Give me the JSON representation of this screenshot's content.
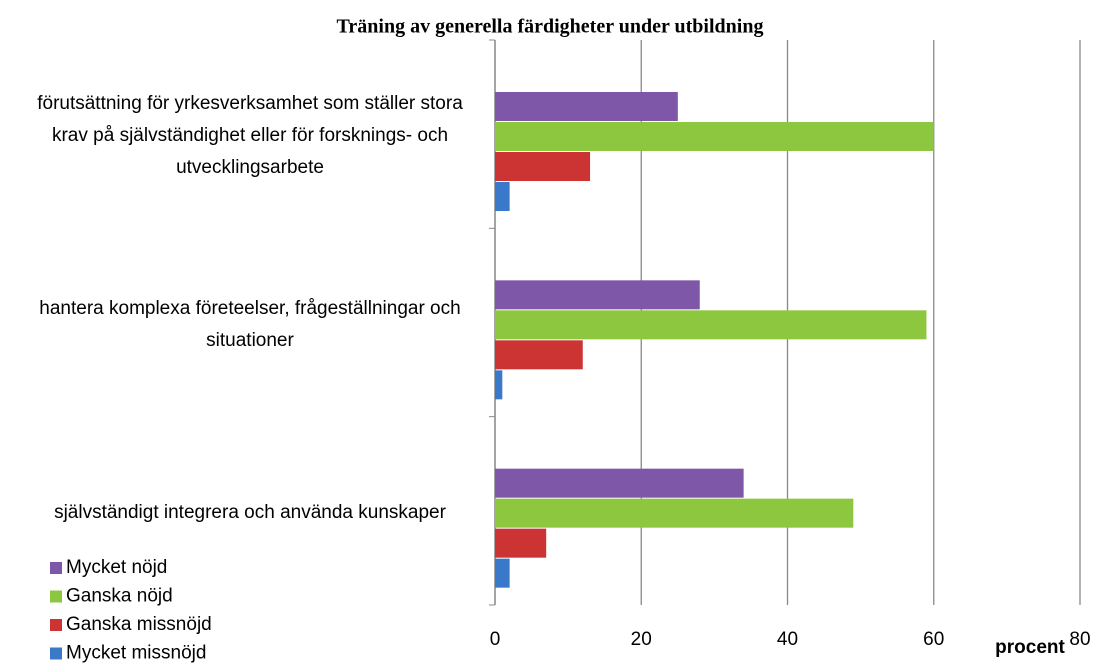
{
  "chart_data": {
    "type": "hbar",
    "title": "Träning av generella färdigheter under utbildning",
    "categories": [
      "förutsättning för yrkesverksamhet som ställer stora krav på självständighet eller för forsknings- och utvecklingsarbete",
      "hantera komplexa företeelser, frågeställningar och situationer",
      "självständigt integrera och använda kunskaper"
    ],
    "series": [
      {
        "name": "Mycket nöjd",
        "color": "#7e57a8",
        "values": [
          25,
          28,
          34
        ]
      },
      {
        "name": "Ganska nöjd",
        "color": "#8dc63f",
        "values": [
          60,
          59,
          49
        ]
      },
      {
        "name": "Ganska missnöjd",
        "color": "#cc3333",
        "values": [
          13,
          12,
          7
        ]
      },
      {
        "name": "Mycket missnöjd",
        "color": "#3a78c9",
        "values": [
          2,
          1,
          2
        ]
      }
    ],
    "x_label": "procent",
    "xlim": [
      0,
      80
    ],
    "xticks": [
      0,
      20,
      40,
      60,
      80
    ],
    "grid": true
  }
}
